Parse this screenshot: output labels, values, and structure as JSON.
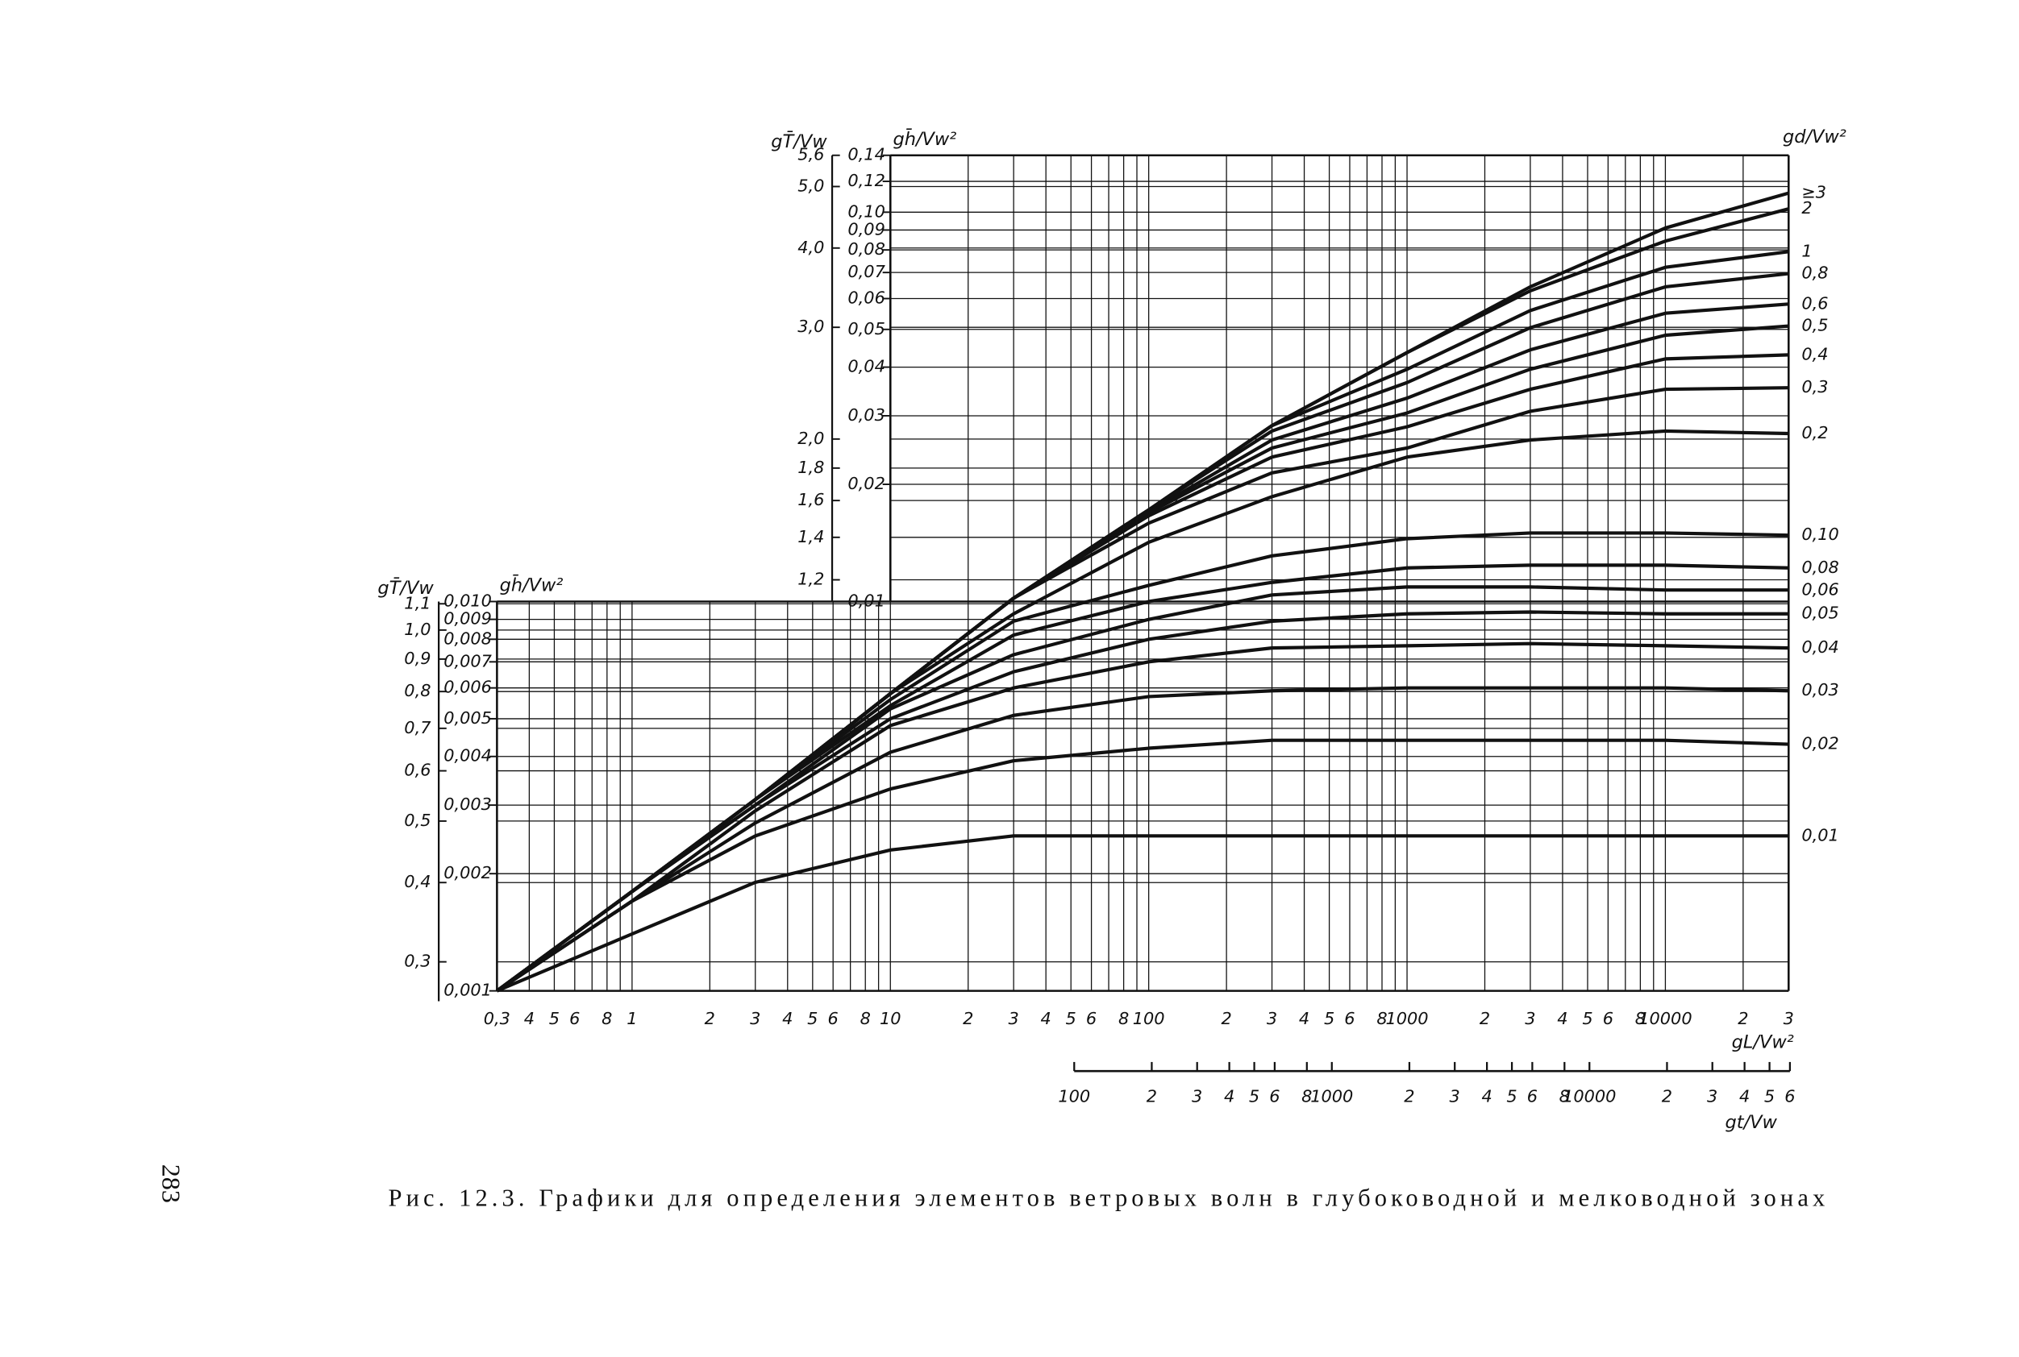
{
  "chart_data": {
    "type": "line",
    "log_x": true,
    "log_y": true,
    "grid": true,
    "color": "#111111",
    "xlabel": "gL/Vw²",
    "xlim": [
      0.3,
      30000
    ],
    "xticks": [
      {
        "value": 0.3,
        "label": "0,3"
      },
      {
        "value": 0.4,
        "label": "4"
      },
      {
        "value": 0.5,
        "label": "5"
      },
      {
        "value": 0.6,
        "label": "6"
      },
      {
        "value": 0.8,
        "label": "8"
      },
      1,
      2,
      3,
      4,
      5,
      6,
      8,
      10,
      {
        "value": 20,
        "label": "2"
      },
      {
        "value": 30,
        "label": "3"
      },
      {
        "value": 40,
        "label": "4"
      },
      {
        "value": 50,
        "label": "5"
      },
      {
        "value": 60,
        "label": "6"
      },
      {
        "value": 80,
        "label": "8"
      },
      100,
      {
        "value": 200,
        "label": "2"
      },
      {
        "value": 300,
        "label": "3"
      },
      {
        "value": 400,
        "label": "4"
      },
      {
        "value": 500,
        "label": "5"
      },
      {
        "value": 600,
        "label": "6"
      },
      {
        "value": 800,
        "label": "8"
      },
      1000,
      {
        "value": 2000,
        "label": "2"
      },
      {
        "value": 3000,
        "label": "3"
      },
      {
        "value": 4000,
        "label": "4"
      },
      {
        "value": 5000,
        "label": "5"
      },
      {
        "value": 6000,
        "label": "6"
      },
      {
        "value": 8000,
        "label": "8"
      },
      10000,
      {
        "value": 20000,
        "label": "2"
      },
      {
        "value": 30000,
        "label": "3"
      }
    ],
    "xgrid": [
      0.7,
      0.9,
      7,
      9,
      70,
      90,
      700,
      900,
      7000,
      9000
    ],
    "x2label": "gt/Vw",
    "x2lim": [
      100,
      60000
    ],
    "x2ticks": [
      100,
      {
        "value": 200,
        "label": "2"
      },
      {
        "value": 300,
        "label": "3"
      },
      {
        "value": 400,
        "label": "4"
      },
      {
        "value": 500,
        "label": "5"
      },
      {
        "value": 600,
        "label": "6"
      },
      {
        "value": 800,
        "label": "8"
      },
      1000,
      {
        "value": 2000,
        "label": "2"
      },
      {
        "value": 3000,
        "label": "3"
      },
      {
        "value": 4000,
        "label": "4"
      },
      {
        "value": 5000,
        "label": "5"
      },
      {
        "value": 6000,
        "label": "6"
      },
      {
        "value": 8000,
        "label": "8"
      },
      10000,
      {
        "value": 20000,
        "label": "2"
      },
      {
        "value": 30000,
        "label": "3"
      },
      {
        "value": 40000,
        "label": "4"
      },
      {
        "value": 50000,
        "label": "5"
      },
      {
        "value": 60000,
        "label": "6"
      }
    ],
    "ylim": [
      0.001,
      0.14
    ],
    "y2lim": [
      0.27,
      5.6
    ],
    "panels": [
      {
        "xlim": [
          0.3,
          30000
        ],
        "ylim": [
          0.001,
          0.01
        ],
        "ylabel": "gh̄/Vw²",
        "y2label": "gT̄/Vw",
        "yticks": [
          {
            "value": 0.001,
            "label": "0,001"
          },
          {
            "value": 0.002,
            "label": "0,002"
          },
          {
            "value": 0.003,
            "label": "0,003"
          },
          {
            "value": 0.004,
            "label": "0,004"
          },
          {
            "value": 0.005,
            "label": "0,005"
          },
          {
            "value": 0.006,
            "label": "0,006"
          },
          {
            "value": 0.007,
            "label": "0,007"
          },
          {
            "value": 0.008,
            "label": "0,008"
          },
          {
            "value": 0.009,
            "label": "0,009"
          },
          {
            "value": 0.01,
            "label": "0,010"
          }
        ],
        "y2ticks": [
          {
            "value": 0.3,
            "label": "0,3"
          },
          {
            "value": 0.4,
            "label": "0,4"
          },
          {
            "value": 0.5,
            "label": "0,5"
          },
          {
            "value": 0.6,
            "label": "0,6"
          },
          {
            "value": 0.7,
            "label": "0,7"
          },
          {
            "value": 0.8,
            "label": "0,8"
          },
          {
            "value": 0.9,
            "label": "0,9"
          },
          {
            "value": 1.0,
            "label": "1,0"
          },
          {
            "value": 1.1,
            "label": "1,1"
          }
        ]
      },
      {
        "xlim": [
          10,
          30000
        ],
        "ylim": [
          0.01,
          0.14
        ],
        "ylabel": "gh̄/Vw²",
        "y2label": "gT̄/Vw",
        "yticks": [
          {
            "value": 0.01,
            "label": "0,01"
          },
          {
            "value": 0.02,
            "label": "0,02"
          },
          {
            "value": 0.03,
            "label": "0,03"
          },
          {
            "value": 0.04,
            "label": "0,04"
          },
          {
            "value": 0.05,
            "label": "0,05"
          },
          {
            "value": 0.06,
            "label": "0,06"
          },
          {
            "value": 0.07,
            "label": "0,07"
          },
          {
            "value": 0.08,
            "label": "0,08"
          },
          {
            "value": 0.09,
            "label": "0,09"
          },
          {
            "value": 0.1,
            "label": "0,10"
          },
          {
            "value": 0.12,
            "label": "0,12"
          },
          {
            "value": 0.14,
            "label": "0,14"
          }
        ],
        "y2ticks": [
          {
            "value": 1.2,
            "label": "1,2"
          },
          {
            "value": 1.4,
            "label": "1,4"
          },
          {
            "value": 1.6,
            "label": "1,6"
          },
          {
            "value": 1.8,
            "label": "1,8"
          },
          {
            "value": 2.0,
            "label": "2,0"
          },
          {
            "value": 3.0,
            "label": "3,0"
          },
          {
            "value": 4.0,
            "label": "4,0"
          },
          {
            "value": 5.0,
            "label": "5,0"
          },
          {
            "value": 5.6,
            "label": "5,6"
          }
        ]
      }
    ],
    "series_label": "gd/Vw²",
    "x": [
      0.3,
      1,
      3,
      10,
      30,
      100,
      300,
      1000,
      3000,
      10000,
      30000
    ],
    "series": [
      {
        "name": "≥3",
        "values": [
          0.001,
          0.0018,
          0.0031,
          0.0058,
          0.0102,
          0.0172,
          0.0283,
          0.0436,
          0.0643,
          0.0911,
          0.112
        ]
      },
      {
        "name": "2",
        "values": [
          0.001,
          0.0018,
          0.0031,
          0.0058,
          0.0102,
          0.0172,
          0.0283,
          0.0436,
          0.0628,
          0.0843,
          0.102
        ]
      },
      {
        "name": "1",
        "values": [
          0.001,
          0.0018,
          0.0031,
          0.0058,
          0.0102,
          0.0172,
          0.0283,
          0.0395,
          0.0559,
          0.0722,
          0.0792
        ]
      },
      {
        "name": "0,8",
        "values": [
          0.001,
          0.0018,
          0.0031,
          0.0058,
          0.0102,
          0.0172,
          0.0274,
          0.0365,
          0.0505,
          0.0643,
          0.0695
        ]
      },
      {
        "name": "0,6",
        "values": [
          0.001,
          0.0018,
          0.0031,
          0.0058,
          0.0102,
          0.017,
          0.026,
          0.0333,
          0.0443,
          0.055,
          0.0581
        ]
      },
      {
        "name": "0,5",
        "values": [
          0.001,
          0.0018,
          0.0031,
          0.0058,
          0.0102,
          0.0169,
          0.0248,
          0.0305,
          0.0395,
          0.0483,
          0.051
        ]
      },
      {
        "name": "0,4",
        "values": [
          0.001,
          0.0018,
          0.0031,
          0.0058,
          0.0102,
          0.0166,
          0.0235,
          0.0281,
          0.0351,
          0.042,
          0.043
        ]
      },
      {
        "name": "0,3",
        "values": [
          0.001,
          0.0018,
          0.0031,
          0.0058,
          0.0102,
          0.0159,
          0.0214,
          0.0248,
          0.0308,
          0.0351,
          0.0354
        ]
      },
      {
        "name": "0,2",
        "values": [
          0.001,
          0.0018,
          0.0031,
          0.0058,
          0.0093,
          0.0142,
          0.0186,
          0.0235,
          0.026,
          0.0274,
          0.027
        ]
      },
      {
        "name": "0,10",
        "values": [
          0.001,
          0.0018,
          0.0031,
          0.0056,
          0.0089,
          0.011,
          0.0131,
          0.0145,
          0.015,
          0.015,
          0.0148
        ]
      },
      {
        "name": "0,08",
        "values": [
          0.001,
          0.0018,
          0.0031,
          0.0054,
          0.0082,
          0.01,
          0.0112,
          0.0122,
          0.0124,
          0.0124,
          0.0122
        ]
      },
      {
        "name": "0,06",
        "values": [
          0.001,
          0.0018,
          0.003,
          0.0053,
          0.0073,
          0.009,
          0.0104,
          0.0109,
          0.0109,
          0.0107,
          0.0107
        ]
      },
      {
        "name": "0,05",
        "values": [
          0.001,
          0.0018,
          0.003,
          0.005,
          0.0066,
          0.008,
          0.0089,
          0.0093,
          0.0094,
          0.0093,
          0.0093
        ]
      },
      {
        "name": "0,04",
        "values": [
          0.001,
          0.0017,
          0.0029,
          0.0048,
          0.006,
          0.007,
          0.0076,
          0.0077,
          0.0078,
          0.0077,
          0.0076
        ]
      },
      {
        "name": "0,03",
        "values": [
          0.001,
          0.0017,
          0.0027,
          0.0041,
          0.0051,
          0.0057,
          0.0059,
          0.006,
          0.006,
          0.006,
          0.0059
        ]
      },
      {
        "name": "0,02",
        "values": [
          0.001,
          0.0017,
          0.0025,
          0.0033,
          0.0039,
          0.0042,
          0.0044,
          0.0044,
          0.0044,
          0.0044,
          0.0043
        ]
      },
      {
        "name": "0,01",
        "values": [
          0.001,
          0.0014,
          0.0019,
          0.0023,
          0.0025,
          0.0025,
          0.0025,
          0.0025,
          0.0025,
          0.0025,
          0.0025
        ]
      }
    ]
  },
  "caption": "Рис. 12.3. Графики для определения элементов ветровых волн в глубоководной и мелководной зонах",
  "page_number": "283"
}
